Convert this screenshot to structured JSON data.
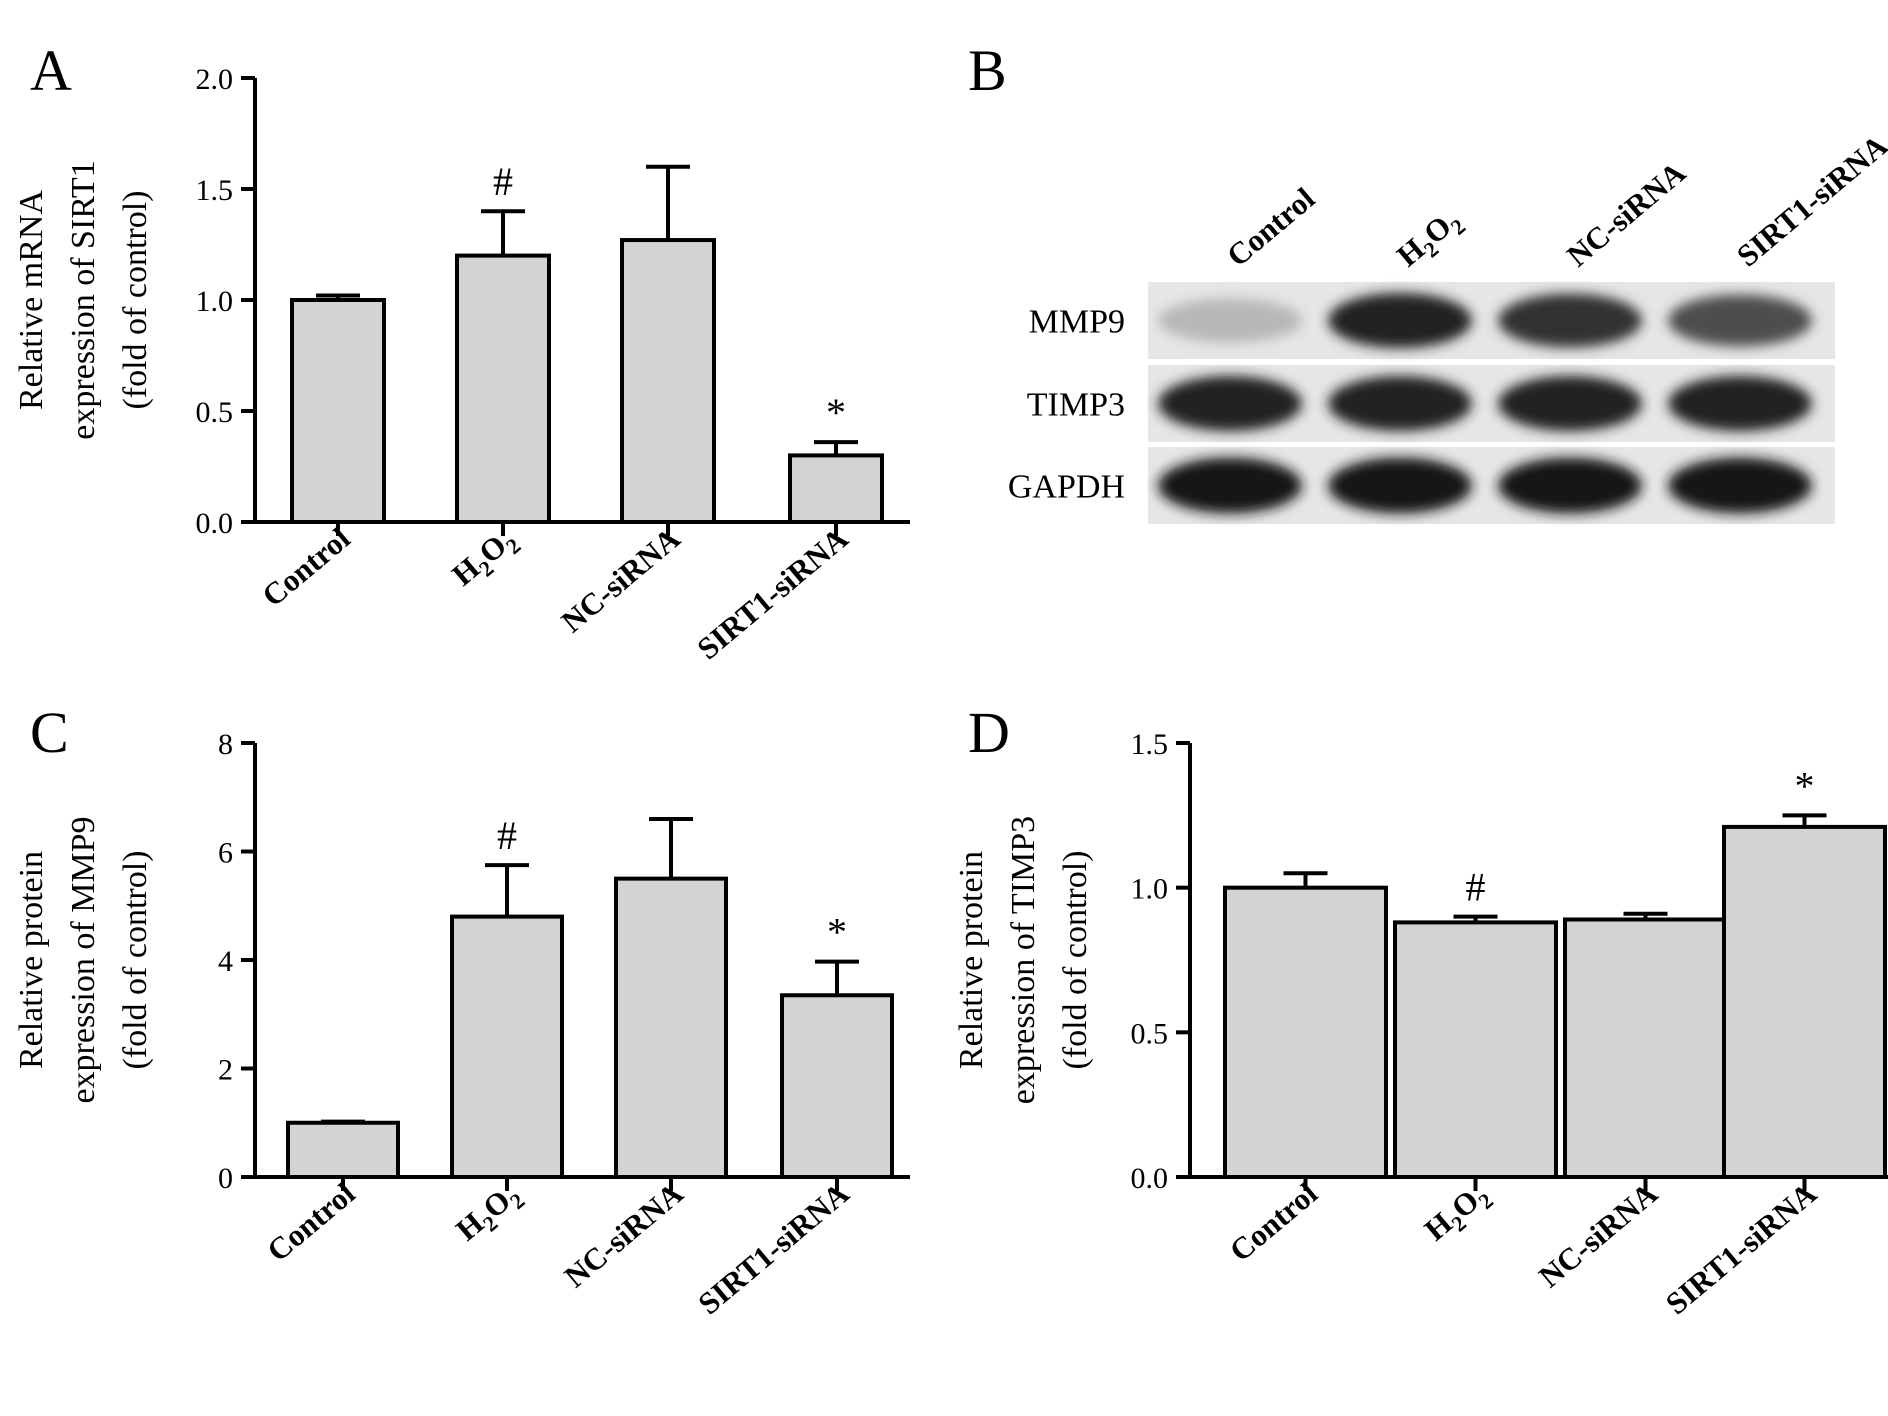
{
  "chart_data": [
    {
      "panel": "A",
      "type": "bar",
      "categories": [
        "Control",
        "H2O2",
        "NC-siRNA",
        "SIRT1-siRNA"
      ],
      "values": [
        1.0,
        1.2,
        1.27,
        0.3
      ],
      "errors": [
        0.02,
        0.2,
        0.33,
        0.06
      ],
      "significance": [
        "",
        "#",
        "",
        "*"
      ],
      "ylabel_lines": [
        "Relative mRNA",
        "expression of SIRT1",
        "(fold of control)"
      ],
      "yticks": [
        "0.0",
        "0.5",
        "1.0",
        "1.5",
        "2.0"
      ],
      "ylim": [
        0,
        2.0
      ],
      "bar_color": "#d3d3d3"
    },
    {
      "panel": "C",
      "type": "bar",
      "categories": [
        "Control",
        "H2O2",
        "NC-siRNA",
        "SIRT1-siRNA"
      ],
      "values": [
        1.0,
        4.8,
        5.5,
        3.35
      ],
      "errors": [
        0.02,
        0.95,
        1.1,
        0.62
      ],
      "significance": [
        "",
        "#",
        "",
        "*"
      ],
      "ylabel_lines": [
        "Relative protein",
        "expression of MMP9",
        "(fold of control)"
      ],
      "yticks": [
        "0",
        "2",
        "4",
        "6",
        "8"
      ],
      "ylim": [
        0,
        8
      ],
      "bar_color": "#d3d3d3"
    },
    {
      "panel": "D",
      "type": "bar",
      "categories": [
        "Control",
        "H2O2",
        "NC-siRNA",
        "SIRT1-siRNA"
      ],
      "values": [
        1.0,
        0.88,
        0.89,
        1.21
      ],
      "errors": [
        0.05,
        0.02,
        0.02,
        0.04
      ],
      "significance": [
        "",
        "#",
        "",
        "*"
      ],
      "ylabel_lines": [
        "Relative protein",
        "expression of TIMP3",
        "(fold of control)"
      ],
      "yticks": [
        "0.0",
        "0.5",
        "1.0",
        "1.5"
      ],
      "ylim": [
        0,
        1.5
      ],
      "bar_color": "#d3d3d3"
    }
  ],
  "blot": {
    "panel": "B",
    "lanes": [
      "Control",
      "H2O2",
      "NC-siRNA",
      "SIRT1-siRNA"
    ],
    "rows": [
      {
        "label": "MMP9",
        "intensity": [
          0.25,
          0.95,
          0.88,
          0.75
        ]
      },
      {
        "label": "TIMP3",
        "intensity": [
          0.95,
          0.95,
          0.95,
          0.95
        ]
      },
      {
        "label": "GAPDH",
        "intensity": [
          1.0,
          1.0,
          1.0,
          1.0
        ]
      }
    ]
  }
}
